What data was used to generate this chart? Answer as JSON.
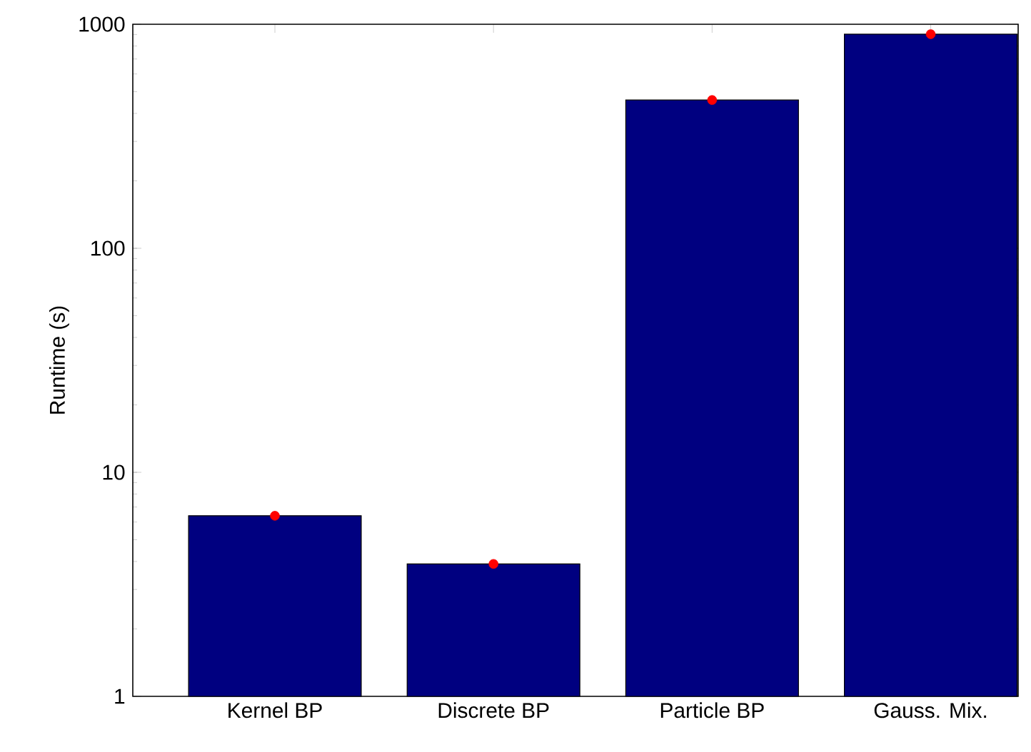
{
  "chart_data": {
    "type": "bar",
    "ylabel": "Runtime (s)",
    "categories": [
      "Kernel BP",
      "Discrete BP",
      "Particle BP",
      "Gauss. Mix."
    ],
    "series": [
      {
        "color": "#000080",
        "values": [
          6.4,
          3.9,
          459,
          903
        ]
      },
      {
        "type": "scatter",
        "color": "#ff0000",
        "marker": "circle",
        "x": [
          "Kernel BP",
          "Discrete BP",
          "Particle BP",
          "Gauss. Mix."
        ],
        "values": [
          6.4,
          3.9,
          459,
          903
        ]
      }
    ],
    "log": "y",
    "ylim": [
      1,
      1000
    ],
    "yticks": [
      1,
      10,
      100,
      1000
    ]
  }
}
